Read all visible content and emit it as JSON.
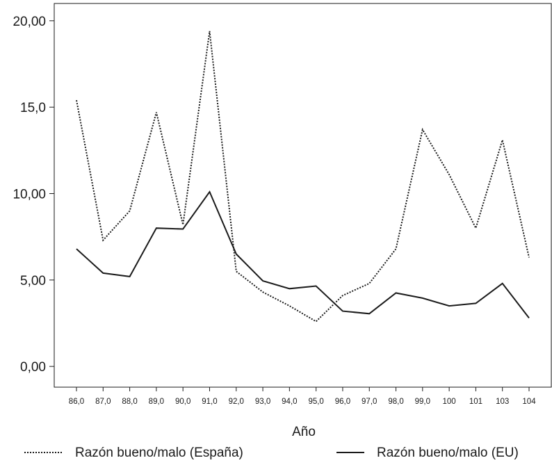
{
  "chart_data": {
    "type": "line",
    "categories": [
      "86,0",
      "87,0",
      "88,0",
      "89,0",
      "90,0",
      "91,0",
      "92,0",
      "93,0",
      "94,0",
      "95,0",
      "96,0",
      "97,0",
      "98,0",
      "99,0",
      "100",
      "101",
      "103",
      "104"
    ],
    "series": [
      {
        "name": "Razón bueno/malo (España)",
        "line_style": "dotted",
        "color": "#1a1a1a",
        "values": [
          15.4,
          7.3,
          9.0,
          14.7,
          8.2,
          19.4,
          5.5,
          4.3,
          3.5,
          2.6,
          4.1,
          4.8,
          6.8,
          13.7,
          11.1,
          8.0,
          13.1,
          6.3
        ]
      },
      {
        "name": "Razón bueno/malo (EU)",
        "line_style": "solid",
        "color": "#1a1a1a",
        "values": [
          6.8,
          5.4,
          5.2,
          8.0,
          7.95,
          10.1,
          6.5,
          4.95,
          4.5,
          4.65,
          3.2,
          3.05,
          4.25,
          3.95,
          3.5,
          3.65,
          4.8,
          2.8
        ]
      }
    ],
    "y_ticks": [
      {
        "value": 0,
        "label": "0,00"
      },
      {
        "value": 5,
        "label": "5,00"
      },
      {
        "value": 10,
        "label": "10,00"
      },
      {
        "value": 15,
        "label": "15,0"
      },
      {
        "value": 20,
        "label": "20,00"
      }
    ],
    "ylim": [
      -1.2,
      21.0
    ],
    "xlabel": "Año",
    "ylabel": "",
    "grid": false,
    "legend_position": "bottom"
  }
}
